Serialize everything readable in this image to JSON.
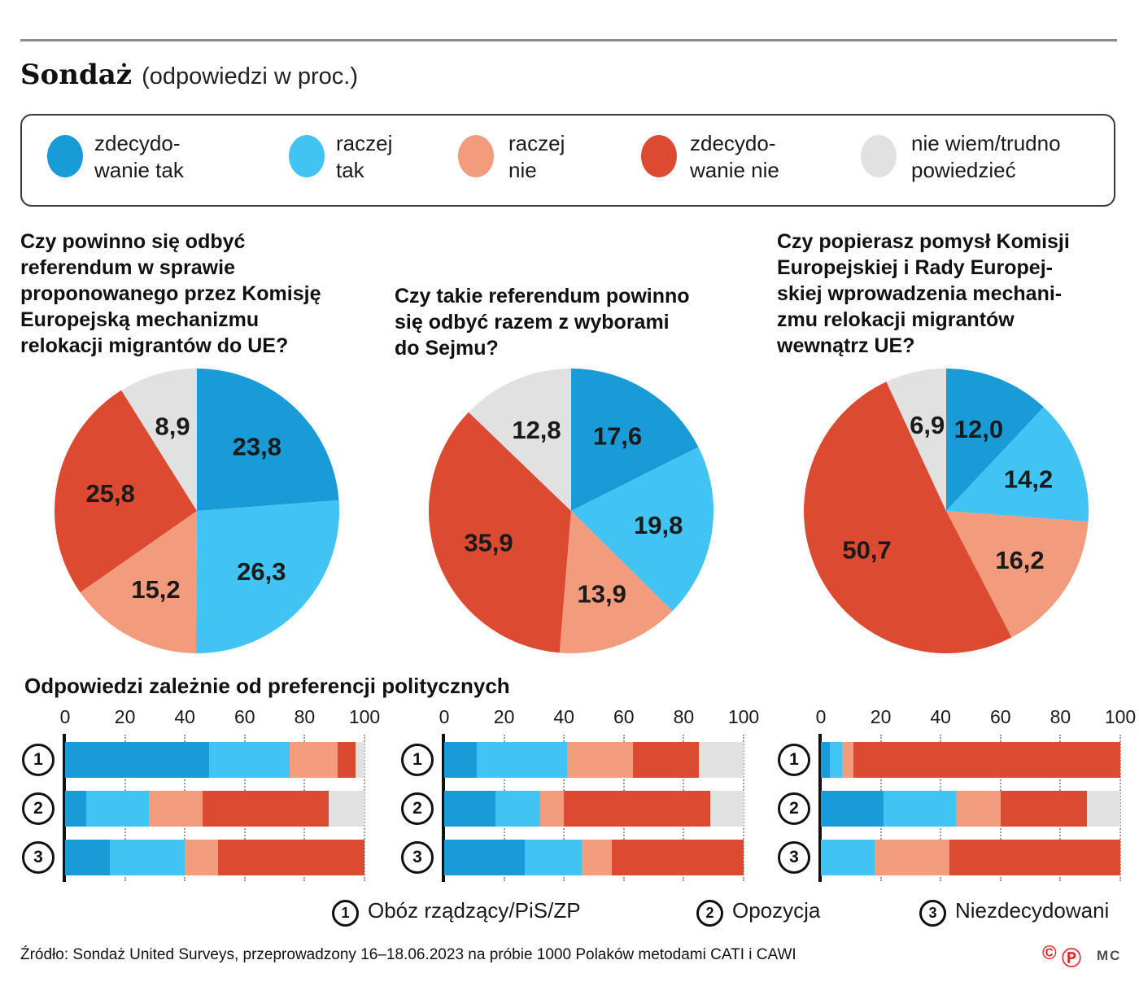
{
  "header": {
    "title": "Sondaż",
    "subtitle": "(odpowiedzi w proc.)"
  },
  "legend": {
    "items": [
      {
        "name": "zdecydowanie tak",
        "color": "#189bd7",
        "lines": [
          "zdecydo-",
          "wanie tak"
        ]
      },
      {
        "name": "raczej tak",
        "color": "#41c3f3",
        "lines": [
          "raczej",
          "tak"
        ]
      },
      {
        "name": "raczej nie",
        "color": "#f39c7d",
        "lines": [
          "raczej",
          "nie"
        ]
      },
      {
        "name": "zdecydowanie nie",
        "color": "#dc4a31",
        "lines": [
          "zdecydo-",
          "wanie nie"
        ]
      },
      {
        "name": "nie wiem/trudno powiedzieć",
        "color": "#e1e1e1",
        "lines": [
          "nie wiem/trudno",
          "powiedzieć"
        ]
      }
    ]
  },
  "chart_data": [
    {
      "type": "pie",
      "question_lines": [
        "Czy powinno się odbyć",
        "referendum w sprawie",
        "proponowanego przez Komisję",
        "Europejską mechanizmu",
        "relokacji migrantów do UE?"
      ],
      "categories": [
        "zdecydowanie tak",
        "raczej tak",
        "raczej nie",
        "zdecydowanie nie",
        "nie wiem/trudno powiedzieć"
      ],
      "values": [
        23.8,
        26.3,
        15.2,
        25.8,
        8.9
      ]
    },
    {
      "type": "pie",
      "question_lines": [
        "Czy takie referendum powinno",
        "się odbyć razem z wyborami",
        "do Sejmu?"
      ],
      "categories": [
        "zdecydowanie tak",
        "raczej tak",
        "raczej nie",
        "zdecydowanie nie",
        "nie wiem/trudno powiedzieć"
      ],
      "values": [
        17.6,
        19.8,
        13.9,
        35.9,
        12.8
      ]
    },
    {
      "type": "pie",
      "question_lines": [
        "Czy popierasz pomysł Komisji",
        "Europejskiej i Rady Europej-",
        "skiej wprowadzenia mechani-",
        "zmu relokacji migrantów",
        "wewnątrz UE?"
      ],
      "categories": [
        "zdecydowanie tak",
        "raczej tak",
        "raczej nie",
        "zdecydowanie nie",
        "nie wiem/trudno powiedzieć"
      ],
      "values": [
        12.0,
        14.2,
        16.2,
        50.7,
        6.9
      ]
    },
    {
      "type": "bar",
      "stacked": true,
      "horizontal": true,
      "title": "Odpowiedzi zależnie od preferencji politycznych",
      "xlim": [
        0,
        100
      ],
      "xticks": [
        0,
        20,
        40,
        60,
        80,
        100
      ],
      "answer_categories": [
        "zdecydowanie tak",
        "raczej tak",
        "raczej nie",
        "zdecydowanie nie",
        "nie wiem/trudno powiedzieć"
      ],
      "row_markers": [
        "1",
        "2",
        "3"
      ],
      "row_legend": [
        {
          "marker": "1",
          "label": "Obóz rządzący/PiS/ZP"
        },
        {
          "marker": "2",
          "label": "Opozycja"
        },
        {
          "marker": "3",
          "label": "Niezdecydowani"
        }
      ],
      "groups": [
        {
          "rows": [
            [
              48,
              27,
              16,
              6,
              3
            ],
            [
              7,
              21,
              18,
              42,
              12
            ],
            [
              15,
              25,
              11,
              49,
              0
            ]
          ]
        },
        {
          "rows": [
            [
              11,
              30,
              22,
              22,
              15
            ],
            [
              17,
              15,
              8,
              49,
              11
            ],
            [
              27,
              19,
              10,
              44,
              0
            ]
          ]
        },
        {
          "rows": [
            [
              3,
              4,
              4,
              89,
              0
            ],
            [
              21,
              24,
              15,
              29,
              11
            ],
            [
              0,
              18,
              25,
              57,
              0
            ]
          ]
        }
      ]
    }
  ],
  "footer": {
    "source": "Źródło: Sondaż United Surveys, przeprowadzony 16–18.06.2023 na próbie 1000 Polaków metodami CATI i CAWI",
    "copyright_mark": "©",
    "phonogram_mark": "Ⓟ",
    "credit": "MC"
  }
}
